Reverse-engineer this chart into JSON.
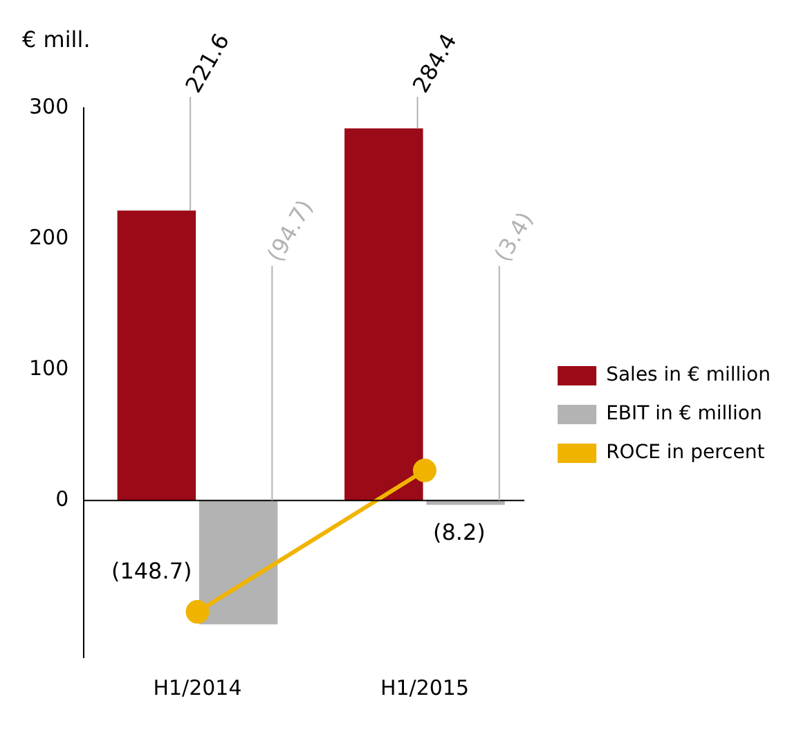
{
  "chart_data": {
    "type": "bar",
    "ylabel": "€ mill.",
    "categories": [
      "H1/2014",
      "H1/2015"
    ],
    "series": [
      {
        "name": "Sales in € million",
        "color": "#9b0a17",
        "values": [
          221.6,
          284.4
        ],
        "value_labels": [
          "221.6",
          "284.4"
        ]
      },
      {
        "name": "EBIT in € million",
        "color": "#b3b3b3",
        "values": [
          -94.7,
          -3.4
        ],
        "value_labels": [
          "(94.7)",
          "(3.4)"
        ]
      },
      {
        "name": "ROCE in percent",
        "type": "line",
        "axis": "y2",
        "color": "#f0b400",
        "marker": "circle",
        "values": [
          -148.7,
          -8.2
        ],
        "value_labels": [
          "(148.7)",
          "(8.2)"
        ]
      }
    ],
    "ylim": [
      -120,
      300
    ],
    "yticks": [
      0,
      100,
      200,
      300
    ],
    "y2lim": [
      -194,
      352
    ],
    "ref_lines": [
      {
        "axis": "y",
        "value": 0
      }
    ],
    "grid": false,
    "legend": "right"
  }
}
